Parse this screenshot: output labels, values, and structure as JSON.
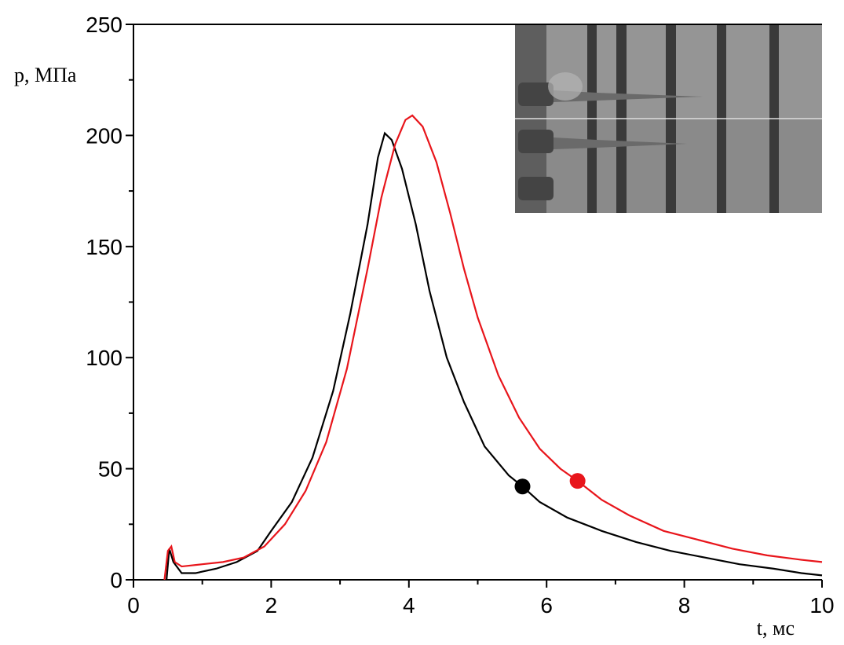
{
  "chart_data": {
    "type": "line",
    "xlabel": "t, мс",
    "ylabel": "p, МПа",
    "xlim": [
      0,
      10
    ],
    "ylim": [
      0,
      250
    ],
    "xticks": [
      0,
      2,
      4,
      6,
      8,
      10
    ],
    "yticks": [
      0,
      50,
      100,
      150,
      200,
      250
    ],
    "series": [
      {
        "color": "#000000",
        "x": [
          0.48,
          0.52,
          0.58,
          0.7,
          0.9,
          1.2,
          1.5,
          1.8,
          2.0,
          2.3,
          2.6,
          2.9,
          3.15,
          3.4,
          3.55,
          3.65,
          3.75,
          3.9,
          4.1,
          4.3,
          4.55,
          4.8,
          5.1,
          5.45,
          5.65,
          5.9,
          6.3,
          6.8,
          7.3,
          7.8,
          8.3,
          8.8,
          9.3,
          9.7,
          10
        ],
        "values": [
          0,
          14,
          8,
          3,
          3,
          5,
          8,
          13,
          22,
          35,
          55,
          85,
          120,
          160,
          190,
          201,
          198,
          185,
          160,
          130,
          100,
          80,
          60,
          47,
          42,
          35,
          28,
          22,
          17,
          13,
          10,
          7,
          5,
          3,
          2
        ],
        "marker": {
          "x": 5.65,
          "y": 42
        }
      },
      {
        "color": "#e8151b",
        "x": [
          0.45,
          0.5,
          0.55,
          0.6,
          0.7,
          1.0,
          1.3,
          1.6,
          1.9,
          2.2,
          2.5,
          2.8,
          3.1,
          3.4,
          3.6,
          3.8,
          3.95,
          4.05,
          4.2,
          4.4,
          4.6,
          4.8,
          5.0,
          5.3,
          5.6,
          5.9,
          6.2,
          6.45,
          6.8,
          7.2,
          7.7,
          8.2,
          8.7,
          9.2,
          9.7,
          10
        ],
        "values": [
          0,
          13,
          15,
          8,
          6,
          7,
          8,
          10,
          15,
          25,
          40,
          62,
          95,
          140,
          172,
          196,
          207,
          209,
          204,
          188,
          165,
          140,
          118,
          92,
          73,
          59,
          50,
          44.5,
          36,
          29,
          22,
          18,
          14,
          11,
          9,
          8
        ],
        "marker": {
          "x": 6.45,
          "y": 44.5
        }
      }
    ]
  }
}
